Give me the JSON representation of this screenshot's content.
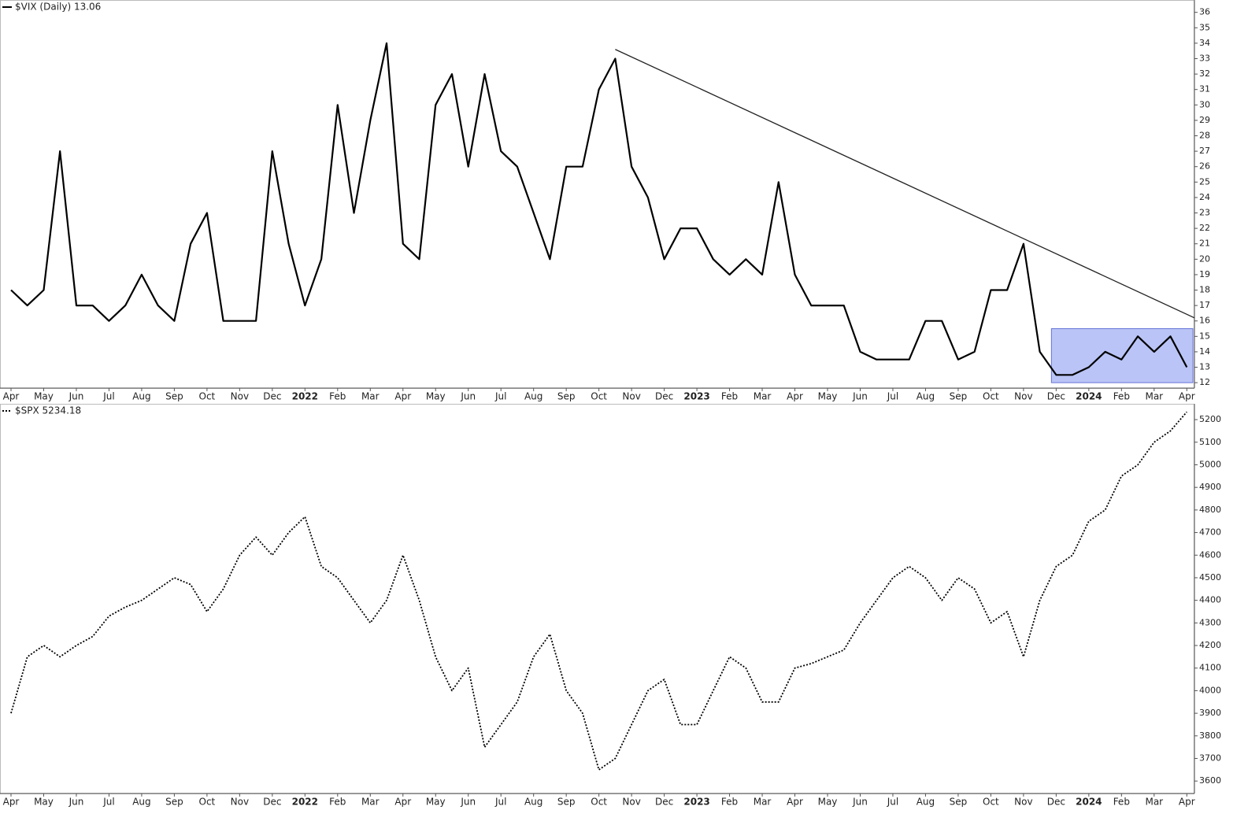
{
  "chart_data": [
    {
      "type": "line",
      "title": "$VIX (Daily) 13.06",
      "categories": [
        "Apr",
        null,
        "May",
        null,
        "Jun",
        null,
        "Jul",
        null,
        "Aug",
        null,
        "Sep",
        null,
        "Oct",
        null,
        "Nov",
        null,
        "Dec",
        null,
        "2022",
        null,
        "Feb",
        null,
        "Mar",
        null,
        "Apr",
        null,
        "May",
        null,
        "Jun",
        null,
        "Jul",
        null,
        "Aug",
        null,
        "Sep",
        null,
        "Oct",
        null,
        "Nov",
        null,
        "Dec",
        null,
        "2023",
        null,
        "Feb",
        null,
        "Mar",
        null,
        "Apr",
        null,
        "May",
        null,
        "Jun",
        null,
        "Jul",
        null,
        "Aug",
        null,
        "Sep",
        null,
        "Oct",
        null,
        "Nov",
        null,
        "Dec",
        null,
        "2024",
        null,
        "Feb",
        null,
        "Mar",
        null,
        "Apr"
      ],
      "series": [
        {
          "color": "#000000",
          "style": "solid",
          "values": [
            18,
            17,
            18,
            27,
            17,
            17,
            16,
            17,
            19,
            17,
            16,
            21,
            23,
            16,
            16,
            16,
            27,
            21,
            17,
            20,
            30,
            23,
            29,
            34,
            21,
            20,
            30,
            32,
            26,
            32,
            27,
            26,
            23,
            20,
            26,
            26,
            31,
            33,
            26,
            24,
            20,
            22,
            22,
            20,
            19,
            20,
            19,
            25,
            19,
            17,
            17,
            17,
            14,
            13.5,
            13.5,
            13.5,
            16,
            16,
            13.5,
            14,
            18,
            18,
            21,
            14,
            12.5,
            12.5,
            13,
            14,
            13.5,
            15,
            14,
            15,
            13
          ]
        }
      ],
      "ylim": [
        11.65,
        36.8
      ],
      "yticks": [
        12,
        13,
        14,
        15,
        16,
        17,
        18,
        19,
        20,
        21,
        22,
        23,
        24,
        25,
        26,
        27,
        28,
        29,
        30,
        31,
        32,
        33,
        34,
        35,
        36
      ],
      "trendline": [
        33.6,
        16.2
      ],
      "highlight_ylim": [
        12,
        15.5
      ],
      "highlight_color": "#8c9cf0"
    },
    {
      "type": "line",
      "title": "$SPX 5234.18",
      "categories": [
        "Apr",
        null,
        "May",
        null,
        "Jun",
        null,
        "Jul",
        null,
        "Aug",
        null,
        "Sep",
        null,
        "Oct",
        null,
        "Nov",
        null,
        "Dec",
        null,
        "2022",
        null,
        "Feb",
        null,
        "Mar",
        null,
        "Apr",
        null,
        "May",
        null,
        "Jun",
        null,
        "Jul",
        null,
        "Aug",
        null,
        "Sep",
        null,
        "Oct",
        null,
        "Nov",
        null,
        "Dec",
        null,
        "2023",
        null,
        "Feb",
        null,
        "Mar",
        null,
        "Apr",
        null,
        "May",
        null,
        "Jun",
        null,
        "Jul",
        null,
        "Aug",
        null,
        "Sep",
        null,
        "Oct",
        null,
        "Nov",
        null,
        "Dec",
        null,
        "2024",
        null,
        "Feb",
        null,
        "Mar",
        null,
        "Apr"
      ],
      "series": [
        {
          "color": "#000000",
          "style": "dotted",
          "values": [
            3900,
            4150,
            4200,
            4150,
            4200,
            4240,
            4330,
            4370,
            4400,
            4450,
            4500,
            4470,
            4350,
            4450,
            4600,
            4680,
            4600,
            4700,
            4770,
            4550,
            4500,
            4400,
            4300,
            4400,
            4600,
            4400,
            4150,
            4000,
            4100,
            3750,
            3850,
            3950,
            4150,
            4250,
            4000,
            3900,
            3650,
            3700,
            3850,
            4000,
            4050,
            3850,
            3850,
            4000,
            4150,
            4100,
            3950,
            3950,
            4100,
            4120,
            4150,
            4180,
            4300,
            4400,
            4500,
            4550,
            4500,
            4400,
            4500,
            4450,
            4300,
            4350,
            4150,
            4400,
            4550,
            4600,
            4750,
            4800,
            4950,
            5000,
            5100,
            5150,
            5234
          ]
        }
      ],
      "ylim": [
        3545,
        5270
      ],
      "yticks": [
        3600,
        3700,
        3800,
        3900,
        4000,
        4100,
        4200,
        4300,
        4400,
        4500,
        4600,
        4700,
        4800,
        4900,
        5000,
        5100,
        5200
      ]
    }
  ]
}
